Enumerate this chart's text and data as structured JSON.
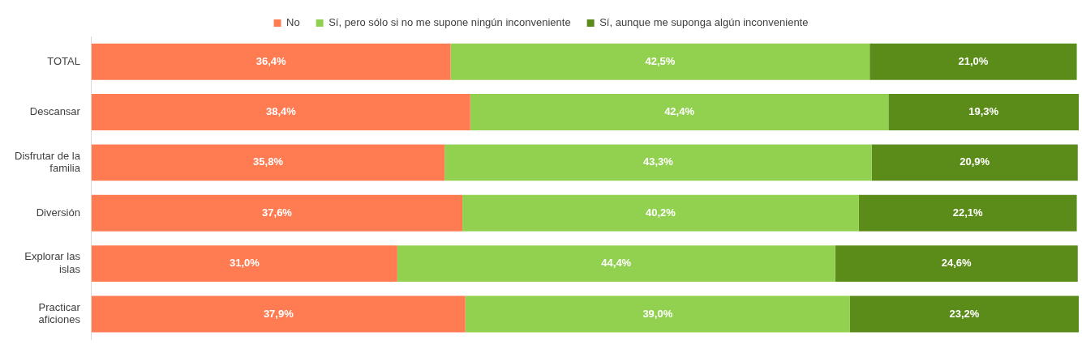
{
  "chart_data": {
    "type": "bar",
    "orientation": "horizontal",
    "stacked": true,
    "legend": "top",
    "grid": false,
    "tick_labels": "y",
    "xlim": [
      0,
      100.1
    ],
    "categories": [
      "TOTAL",
      "Descansar",
      "Disfrutar de la familia",
      "Diversión",
      "Explorar las islas",
      "Practicar aficiones"
    ],
    "series": [
      {
        "name": "No",
        "color": "#ff7b52",
        "values": [
          36.4,
          38.4,
          35.8,
          37.6,
          31.0,
          37.9
        ],
        "value_labels": [
          "36,4%",
          "38,4%",
          "35,8%",
          "37,6%",
          "31,0%",
          "37,9%"
        ]
      },
      {
        "name": "Sí, pero sólo si no me supone ningún inconveniente",
        "color": "#92d050",
        "values": [
          42.5,
          42.4,
          43.3,
          40.2,
          44.4,
          39.0
        ],
        "value_labels": [
          "42,5%",
          "42,4%",
          "43,3%",
          "40,2%",
          "44,4%",
          "39,0%"
        ]
      },
      {
        "name": "Sí, aunque me suponga algún inconveniente",
        "color": "#5b8c1a",
        "values": [
          21.0,
          19.3,
          20.9,
          22.1,
          24.6,
          23.2
        ],
        "value_labels": [
          "21,0%",
          "19,3%",
          "20,9%",
          "22,1%",
          "24,6%",
          "23,2%"
        ]
      }
    ]
  }
}
